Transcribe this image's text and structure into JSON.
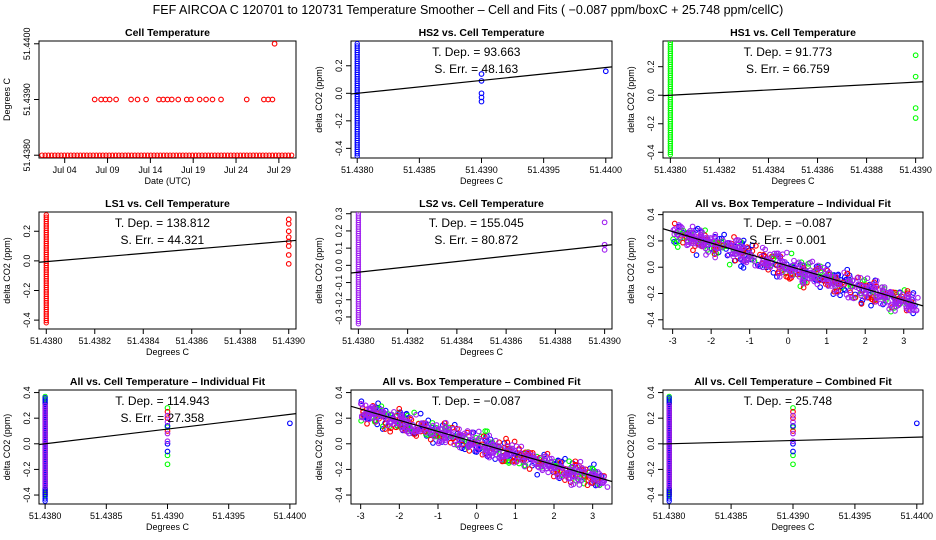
{
  "figure": {
    "title": "FEF   AIRCOA C   120701 to 120731   Temperature Smoother – Cell and Fits ( −0.087  ppm/boxC +  25.748  ppm/cellC)"
  },
  "colors": {
    "hs2": "#0000ff",
    "hs1": "#00ff00",
    "ls1": "#ff0000",
    "ls2": "#a020f0",
    "fit_line": "#000000",
    "cell_temp_points": "#ff0000"
  },
  "chart_data": [
    {
      "type": "scatter",
      "title": "Cell Temperature",
      "xlabel": "Date (UTC)",
      "ylabel": "Degrees C",
      "x_ticks": [
        "Jul 04",
        "Jul 09",
        "Jul 14",
        "Jul 19",
        "Jul 24",
        "Jul 29"
      ],
      "y_ticks": [
        "51.4380",
        "51.4390",
        "51.4400"
      ],
      "xlim": [
        "2012-07-01",
        "2012-07-31"
      ],
      "ylim": [
        51.43795,
        51.44005
      ],
      "series": [
        {
          "color": "#ff0000",
          "points": [
            [
              "2012-07-07T12",
              51.439
            ],
            [
              "2012-07-08T06",
              51.439
            ],
            [
              "2012-07-08T18",
              51.439
            ],
            [
              "2012-07-09T06",
              51.439
            ],
            [
              "2012-07-10T00",
              51.439
            ],
            [
              "2012-07-11T18",
              51.439
            ],
            [
              "2012-07-12T12",
              51.439
            ],
            [
              "2012-07-13T12",
              51.439
            ],
            [
              "2012-07-15T00",
              51.439
            ],
            [
              "2012-07-15T12",
              51.439
            ],
            [
              "2012-07-16T00",
              51.439
            ],
            [
              "2012-07-16T12",
              51.439
            ],
            [
              "2012-07-17T06",
              51.439
            ],
            [
              "2012-07-18T06",
              51.439
            ],
            [
              "2012-07-18T18",
              51.439
            ],
            [
              "2012-07-19T18",
              51.439
            ],
            [
              "2012-07-20T12",
              51.439
            ],
            [
              "2012-07-21T06",
              51.439
            ],
            [
              "2012-07-22T06",
              51.439
            ],
            [
              "2012-07-25T06",
              51.439
            ],
            [
              "2012-07-27T06",
              51.439
            ],
            [
              "2012-07-27T18",
              51.439
            ],
            [
              "2012-07-28T06",
              51.439
            ],
            [
              "2012-07-28T12",
              51.44
            ]
          ],
          "baseline": {
            "value": 51.438,
            "from": "2012-07-01",
            "to": "2012-07-31"
          }
        }
      ]
    },
    {
      "type": "scatter",
      "title": "HS2 vs. Cell Temperature",
      "xlabel": "Degrees C",
      "ylabel": "delta CO2 (ppm)",
      "x_ticks": [
        "51.4380",
        "51.4385",
        "51.4390",
        "51.4395",
        "51.4400"
      ],
      "y_ticks": [
        "-0.4",
        "-0.2",
        "0.0",
        "0.2"
      ],
      "xlim": [
        51.43795,
        51.44005
      ],
      "ylim": [
        -0.47,
        0.38
      ],
      "annotations": [
        "T. Dep. =  93.663",
        "S. Err. =  48.163"
      ],
      "fit": {
        "slope": 93.663,
        "x0": 51.438,
        "y0": 0.0
      },
      "series": [
        {
          "color": "#0000ff",
          "columns": [
            {
              "x": 51.438,
              "ymin": -0.47,
              "ymax": 0.36
            }
          ],
          "points": [
            [
              51.439,
              0.14
            ],
            [
              51.439,
              0.09
            ],
            [
              51.439,
              0.0
            ],
            [
              51.439,
              -0.03
            ],
            [
              51.439,
              -0.06
            ],
            [
              51.44,
              0.16
            ]
          ]
        }
      ]
    },
    {
      "type": "scatter",
      "title": "HS1 vs. Cell Temperature",
      "xlabel": "Degrees C",
      "ylabel": "delta CO2 (ppm)",
      "x_ticks": [
        "51.4380",
        "51.4382",
        "51.4384",
        "51.4386",
        "51.4388",
        "51.4390"
      ],
      "y_ticks": [
        "-0.4",
        "-0.2",
        "0.0",
        "0.2"
      ],
      "xlim": [
        51.43797,
        51.43903
      ],
      "ylim": [
        -0.44,
        0.38
      ],
      "annotations": [
        "T. Dep. =  91.773",
        "S. Err. =  66.759"
      ],
      "fit": {
        "slope": 91.773,
        "x0": 51.438,
        "y0": 0.0
      },
      "series": [
        {
          "color": "#00ff00",
          "columns": [
            {
              "x": 51.438,
              "ymin": -0.42,
              "ymax": 0.37
            }
          ],
          "points": [
            [
              51.439,
              0.28
            ],
            [
              51.439,
              0.13
            ],
            [
              51.439,
              -0.09
            ],
            [
              51.439,
              -0.16
            ]
          ]
        }
      ]
    },
    {
      "type": "scatter",
      "title": "LS1 vs. Cell Temperature",
      "xlabel": "Degrees C",
      "ylabel": "delta CO2 (ppm)",
      "x_ticks": [
        "51.4380",
        "51.4382",
        "51.4384",
        "51.4386",
        "51.4388",
        "51.4390"
      ],
      "y_ticks": [
        "-0.4",
        "-0.2",
        "0.0",
        "0.2"
      ],
      "xlim": [
        51.43797,
        51.43903
      ],
      "ylim": [
        -0.46,
        0.33
      ],
      "annotations": [
        "T. Dep. =  138.812",
        "S. Err. =  44.321"
      ],
      "fit": {
        "slope": 138.812,
        "x0": 51.438,
        "y0": -0.005
      },
      "series": [
        {
          "color": "#ff0000",
          "columns": [
            {
              "x": 51.438,
              "ymin": -0.42,
              "ymax": 0.31
            }
          ],
          "points": [
            [
              51.439,
              0.28
            ],
            [
              51.439,
              0.25
            ],
            [
              51.439,
              0.2
            ],
            [
              51.439,
              0.16
            ],
            [
              51.439,
              0.13
            ],
            [
              51.439,
              0.1
            ],
            [
              51.439,
              0.04
            ],
            [
              51.439,
              -0.02
            ]
          ]
        }
      ]
    },
    {
      "type": "scatter",
      "title": "LS2 vs. Cell Temperature",
      "xlabel": "Degrees C",
      "ylabel": "delta CO2 (ppm)",
      "x_ticks": [
        "51.4380",
        "51.4382",
        "51.4384",
        "51.4386",
        "51.4388",
        "51.4390"
      ],
      "y_ticks": [
        "-0.3",
        "-0.2",
        "-0.1",
        "0.0",
        "0.1",
        "0.2",
        "0.3"
      ],
      "xlim": [
        51.43797,
        51.43903
      ],
      "ylim": [
        -0.37,
        0.31
      ],
      "annotations": [
        "T. Dep. =  155.045",
        "S. Err. =  80.872"
      ],
      "fit": {
        "slope": 155.045,
        "x0": 51.438,
        "y0": -0.04
      },
      "series": [
        {
          "color": "#a020f0",
          "columns": [
            {
              "x": 51.438,
              "ymin": -0.35,
              "ymax": 0.3
            }
          ],
          "points": [
            [
              51.439,
              0.25
            ],
            [
              51.439,
              0.12
            ],
            [
              51.439,
              0.09
            ]
          ]
        }
      ]
    },
    {
      "type": "scatter",
      "title": "All vs. Box Temperature – Individual Fit",
      "xlabel": "",
      "ylabel": "delta CO2 (ppm)",
      "x_ticks": [
        "-3",
        "-2",
        "-1",
        "0",
        "1",
        "2",
        "3"
      ],
      "y_ticks": [
        "-0.4",
        "-0.2",
        "0.0",
        "0.2",
        "0.4"
      ],
      "xlim": [
        -3.25,
        3.5
      ],
      "ylim": [
        -0.47,
        0.42
      ],
      "annotations": [
        "T. Dep. =  −0.087",
        "S. Err. =  0.001"
      ],
      "fit": {
        "slope": -0.087,
        "x0": 0,
        "y0": 0.01
      },
      "series": [
        {
          "color": "#0000ff",
          "cloud": {
            "xmin": -3.0,
            "xmax": 3.4,
            "slope": -0.087,
            "y0": 0.0,
            "spread": 0.11,
            "count": 130
          }
        },
        {
          "color": "#00ff00",
          "cloud": {
            "xmin": -3.0,
            "xmax": 3.2,
            "slope": -0.087,
            "y0": 0.0,
            "spread": 0.1,
            "count": 110
          }
        },
        {
          "color": "#ff0000",
          "cloud": {
            "xmin": -3.0,
            "xmax": 3.3,
            "slope": -0.087,
            "y0": 0.0,
            "spread": 0.1,
            "count": 120
          }
        },
        {
          "color": "#a020f0",
          "cloud": {
            "xmin": -3.0,
            "xmax": 3.4,
            "slope": -0.087,
            "y0": 0.0,
            "spread": 0.09,
            "count": 340
          }
        }
      ]
    },
    {
      "type": "scatter",
      "title": "All vs. Cell Temperature – Individual Fit",
      "xlabel": "Degrees C",
      "ylabel": "delta CO2 (ppm)",
      "x_ticks": [
        "51.4380",
        "51.4385",
        "51.4390",
        "51.4395",
        "51.4400"
      ],
      "y_ticks": [
        "-0.4",
        "-0.2",
        "0.0",
        "0.2",
        "0.4"
      ],
      "xlim": [
        51.43795,
        51.44005
      ],
      "ylim": [
        -0.47,
        0.42
      ],
      "annotations": [
        "T. Dep. =  114.943",
        "S. Err. =  27.358"
      ],
      "fit": {
        "slope": 114.943,
        "x0": 51.438,
        "y0": 0.0
      },
      "series": [
        {
          "color": "#00ff00",
          "columns": [
            {
              "x": 51.438,
              "ymin": -0.42,
              "ymax": 0.37
            }
          ],
          "points": [
            [
              51.439,
              0.28
            ],
            [
              51.439,
              0.13
            ],
            [
              51.439,
              -0.09
            ],
            [
              51.439,
              -0.16
            ]
          ]
        },
        {
          "color": "#ff0000",
          "columns": [
            {
              "x": 51.438,
              "ymin": -0.4,
              "ymax": 0.31
            }
          ],
          "points": [
            [
              51.439,
              0.25
            ],
            [
              51.439,
              0.2
            ],
            [
              51.439,
              0.1
            ]
          ]
        },
        {
          "color": "#0000ff",
          "columns": [
            {
              "x": 51.438,
              "ymin": -0.45,
              "ymax": 0.36
            }
          ],
          "points": [
            [
              51.439,
              0.14
            ],
            [
              51.439,
              0.0
            ],
            [
              51.439,
              -0.06
            ],
            [
              51.44,
              0.16
            ]
          ]
        },
        {
          "color": "#a020f0",
          "columns": [
            {
              "x": 51.438,
              "ymin": -0.35,
              "ymax": 0.3
            }
          ],
          "points": [
            [
              51.439,
              0.22
            ],
            [
              51.439,
              0.17
            ],
            [
              51.439,
              0.08
            ],
            [
              51.439,
              0.02
            ]
          ]
        }
      ]
    },
    {
      "type": "scatter",
      "title": "All vs. Box Temperature – Combined Fit",
      "xlabel": "Degrees C",
      "ylabel": "delta CO2 (ppm)",
      "x_ticks": [
        "-3",
        "-2",
        "-1",
        "0",
        "1",
        "2",
        "3"
      ],
      "y_ticks": [
        "-0.4",
        "-0.2",
        "0.0",
        "0.2",
        "0.4"
      ],
      "xlim": [
        -3.25,
        3.5
      ],
      "ylim": [
        -0.47,
        0.42
      ],
      "annotations": [
        "T. Dep. =  −0.087"
      ],
      "fit": {
        "slope": -0.087,
        "x0": 0,
        "y0": 0.01
      },
      "series": [
        {
          "color": "#0000ff",
          "cloud": {
            "xmin": -3.0,
            "xmax": 3.4,
            "slope": -0.087,
            "y0": 0.0,
            "spread": 0.11,
            "count": 130
          }
        },
        {
          "color": "#00ff00",
          "cloud": {
            "xmin": -3.0,
            "xmax": 3.2,
            "slope": -0.087,
            "y0": 0.0,
            "spread": 0.1,
            "count": 110
          }
        },
        {
          "color": "#ff0000",
          "cloud": {
            "xmin": -3.0,
            "xmax": 3.3,
            "slope": -0.087,
            "y0": 0.0,
            "spread": 0.1,
            "count": 120
          }
        },
        {
          "color": "#a020f0",
          "cloud": {
            "xmin": -3.0,
            "xmax": 3.4,
            "slope": -0.087,
            "y0": 0.0,
            "spread": 0.09,
            "count": 340
          }
        }
      ]
    },
    {
      "type": "scatter",
      "title": "All vs. Cell Temperature – Combined Fit",
      "xlabel": "Degrees C",
      "ylabel": "delta CO2 (ppm)",
      "x_ticks": [
        "51.4380",
        "51.4385",
        "51.4390",
        "51.4395",
        "51.4400"
      ],
      "y_ticks": [
        "-0.4",
        "-0.2",
        "0.0",
        "0.2",
        "0.4"
      ],
      "xlim": [
        51.43795,
        51.44005
      ],
      "ylim": [
        -0.47,
        0.42
      ],
      "annotations": [
        "T. Dep. =  25.748"
      ],
      "fit": {
        "slope": 25.748,
        "x0": 51.438,
        "y0": 0.0
      },
      "series": [
        {
          "color": "#00ff00",
          "columns": [
            {
              "x": 51.438,
              "ymin": -0.42,
              "ymax": 0.37
            }
          ],
          "points": [
            [
              51.439,
              0.28
            ],
            [
              51.439,
              0.13
            ],
            [
              51.439,
              -0.09
            ],
            [
              51.439,
              -0.16
            ]
          ]
        },
        {
          "color": "#ff0000",
          "columns": [
            {
              "x": 51.438,
              "ymin": -0.4,
              "ymax": 0.31
            }
          ],
          "points": [
            [
              51.439,
              0.25
            ],
            [
              51.439,
              0.2
            ],
            [
              51.439,
              0.1
            ]
          ]
        },
        {
          "color": "#0000ff",
          "columns": [
            {
              "x": 51.438,
              "ymin": -0.45,
              "ymax": 0.36
            }
          ],
          "points": [
            [
              51.439,
              0.14
            ],
            [
              51.439,
              0.0
            ],
            [
              51.439,
              -0.06
            ],
            [
              51.44,
              0.16
            ]
          ]
        },
        {
          "color": "#a020f0",
          "columns": [
            {
              "x": 51.438,
              "ymin": -0.35,
              "ymax": 0.3
            }
          ],
          "points": [
            [
              51.439,
              0.22
            ],
            [
              51.439,
              0.17
            ],
            [
              51.439,
              0.08
            ],
            [
              51.439,
              0.02
            ]
          ]
        }
      ]
    }
  ]
}
